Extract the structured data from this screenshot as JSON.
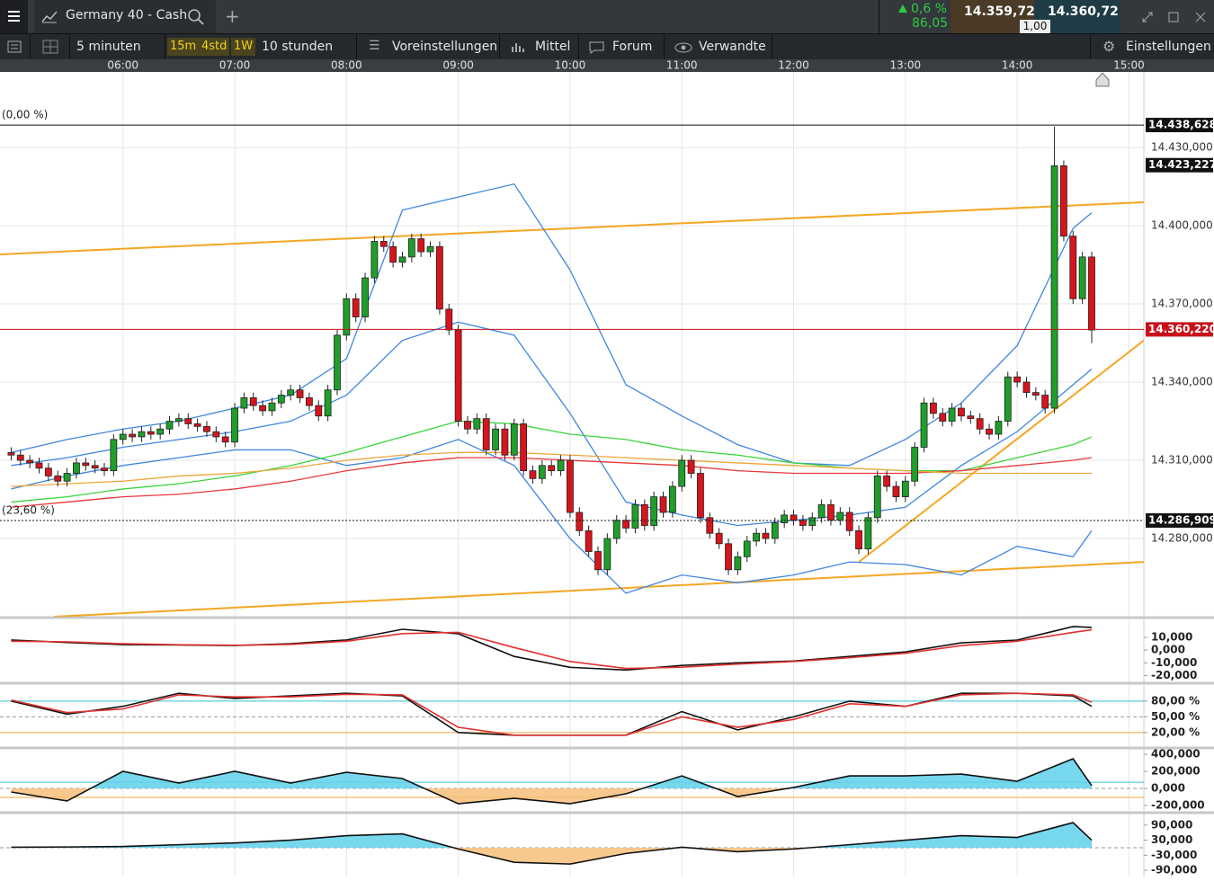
{
  "header": {
    "instrument": "Germany 40 - Cash",
    "change": "0,6 %",
    "change_points": "86,05",
    "bid": "14.359,72",
    "ask": "14.360,72",
    "spread": "1,00"
  },
  "toolbar": {
    "interval": "5 minuten",
    "quick": [
      "15m",
      "4std",
      "1W"
    ],
    "range": "10 stunden",
    "items": [
      "Voreinstellungen",
      "Mittel",
      "Forum",
      "Verwandte"
    ],
    "settings": "Einstellungen"
  },
  "chart_data": {
    "type": "candlestick",
    "up_color": "#1f9e2a",
    "down_color": "#d8141c",
    "grid": true,
    "xlim": [
      294,
      908
    ],
    "xticks": [
      {
        "value": 360,
        "label": "06:00"
      },
      {
        "value": 420,
        "label": "07:00"
      },
      {
        "value": 480,
        "label": "08:00"
      },
      {
        "value": 540,
        "label": "09:00"
      },
      {
        "value": 600,
        "label": "10:00"
      },
      {
        "value": 660,
        "label": "11:00"
      },
      {
        "value": 720,
        "label": "12:00"
      },
      {
        "value": 780,
        "label": "13:00"
      },
      {
        "value": 840,
        "label": "14:00"
      },
      {
        "value": 900,
        "label": "15:00"
      }
    ],
    "ylim": [
      14250,
      14459
    ],
    "yticks": [
      {
        "value": 14430,
        "label": "14.430,000"
      },
      {
        "value": 14400,
        "label": "14.400,000"
      },
      {
        "value": 14370,
        "label": "14.370,000"
      },
      {
        "value": 14340,
        "label": "14.340,000"
      },
      {
        "value": 14310,
        "label": "14.310,000"
      },
      {
        "value": 14280,
        "label": "14.280,000"
      }
    ],
    "x": [
      300,
      305,
      310,
      315,
      320,
      325,
      330,
      335,
      340,
      345,
      350,
      355,
      360,
      365,
      370,
      375,
      380,
      385,
      390,
      395,
      400,
      405,
      410,
      415,
      420,
      425,
      430,
      435,
      440,
      445,
      450,
      455,
      460,
      465,
      470,
      475,
      480,
      485,
      490,
      495,
      500,
      505,
      510,
      515,
      520,
      525,
      530,
      535,
      540,
      545,
      550,
      555,
      560,
      565,
      570,
      575,
      580,
      585,
      590,
      595,
      600,
      605,
      610,
      615,
      620,
      625,
      630,
      635,
      640,
      645,
      650,
      655,
      660,
      665,
      670,
      675,
      680,
      685,
      690,
      695,
      700,
      705,
      710,
      715,
      720,
      725,
      730,
      735,
      740,
      745,
      750,
      755,
      760,
      765,
      770,
      775,
      780,
      785,
      790,
      795,
      800,
      805,
      810,
      815,
      820,
      825,
      830,
      835,
      840,
      845,
      850,
      855,
      860,
      865,
      870,
      875,
      880
    ],
    "open": [
      14313,
      14312,
      14310,
      14309,
      14307,
      14304,
      14302,
      14305,
      14309,
      14308,
      14307,
      14306,
      14318,
      14320,
      14319,
      14321,
      14320,
      14322,
      14325,
      14326,
      14324,
      14323,
      14321,
      14319,
      14317,
      14330,
      14334,
      14331,
      14329,
      14332,
      14335,
      14337,
      14334,
      14331,
      14327,
      14337,
      14358,
      14372,
      14365,
      14380,
      14394,
      14392,
      14386,
      14388,
      14395,
      14390,
      14392,
      14368,
      14360,
      14325,
      14322,
      14326,
      14314,
      14322,
      14312,
      14324,
      14306,
      14303,
      14308,
      14306,
      14310,
      14290,
      14283,
      14275,
      14268,
      14280,
      14287,
      14284,
      14293,
      14285,
      14296,
      14290,
      14300,
      14310,
      14305,
      14288,
      14282,
      14278,
      14268,
      14273,
      14279,
      14282,
      14280,
      14286,
      14289,
      14287,
      14285,
      14288,
      14293,
      14287,
      14290,
      14283,
      14276,
      14288,
      14304,
      14300,
      14296,
      14302,
      14315,
      14332,
      14328,
      14325,
      14330,
      14327,
      14326,
      14322,
      14320,
      14325,
      14342,
      14340,
      14336,
      14335,
      14330,
      14423,
      14396,
      14372,
      14388
    ],
    "high": [
      14315,
      14314,
      14312,
      14311,
      14309,
      14306,
      14307,
      14311,
      14311,
      14310,
      14309,
      14320,
      14322,
      14322,
      14323,
      14323,
      14324,
      14327,
      14328,
      14328,
      14326,
      14325,
      14323,
      14321,
      14332,
      14336,
      14336,
      14333,
      14334,
      14337,
      14339,
      14339,
      14336,
      14333,
      14339,
      14360,
      14374,
      14374,
      14382,
      14396,
      14396,
      14394,
      14390,
      14397,
      14397,
      14394,
      14394,
      14370,
      14362,
      14327,
      14328,
      14328,
      14324,
      14324,
      14326,
      14326,
      14308,
      14310,
      14310,
      14312,
      14312,
      14292,
      14285,
      14277,
      14282,
      14289,
      14289,
      14295,
      14295,
      14298,
      14298,
      14302,
      14312,
      14312,
      14307,
      14290,
      14284,
      14280,
      14275,
      14281,
      14284,
      14284,
      14288,
      14291,
      14291,
      14289,
      14290,
      14295,
      14295,
      14292,
      14292,
      14285,
      14290,
      14306,
      14306,
      14302,
      14304,
      14317,
      14334,
      14334,
      14330,
      14332,
      14332,
      14329,
      14328,
      14324,
      14327,
      14344,
      14344,
      14342,
      14338,
      14337,
      14438,
      14425,
      14398,
      14390,
      14390
    ],
    "low": [
      14310,
      14308,
      14307,
      14305,
      14302,
      14300,
      14300,
      14303,
      14306,
      14305,
      14304,
      14304,
      14316,
      14317,
      14317,
      14318,
      14318,
      14320,
      14323,
      14322,
      14321,
      14319,
      14317,
      14315,
      14315,
      14328,
      14329,
      14327,
      14327,
      14330,
      14333,
      14332,
      14329,
      14325,
      14325,
      14335,
      14356,
      14363,
      14363,
      14378,
      14390,
      14384,
      14384,
      14386,
      14388,
      14388,
      14366,
      14358,
      14323,
      14320,
      14320,
      14312,
      14312,
      14310,
      14310,
      14304,
      14301,
      14301,
      14304,
      14304,
      14288,
      14281,
      14273,
      14266,
      14266,
      14278,
      14282,
      14282,
      14283,
      14283,
      14288,
      14288,
      14298,
      14303,
      14286,
      14280,
      14276,
      14266,
      14266,
      14271,
      14277,
      14278,
      14278,
      14284,
      14285,
      14283,
      14283,
      14286,
      14285,
      14285,
      14281,
      14274,
      14274,
      14286,
      14298,
      14294,
      14294,
      14300,
      14313,
      14326,
      14323,
      14323,
      14325,
      14324,
      14320,
      14318,
      14318,
      14323,
      14338,
      14334,
      14333,
      14328,
      14328,
      14394,
      14370,
      14370,
      14355
    ],
    "close": [
      14312,
      14310,
      14309,
      14307,
      14304,
      14302,
      14305,
      14309,
      14308,
      14307,
      14306,
      14318,
      14320,
      14319,
      14321,
      14320,
      14322,
      14325,
      14326,
      14324,
      14323,
      14321,
      14319,
      14317,
      14330,
      14334,
      14331,
      14329,
      14332,
      14335,
      14337,
      14334,
      14331,
      14327,
      14337,
      14358,
      14372,
      14365,
      14380,
      14394,
      14392,
      14386,
      14388,
      14395,
      14390,
      14392,
      14368,
      14360,
      14325,
      14322,
      14326,
      14314,
      14322,
      14312,
      14324,
      14306,
      14303,
      14308,
      14306,
      14310,
      14290,
      14283,
      14275,
      14268,
      14280,
      14287,
      14284,
      14293,
      14285,
      14296,
      14290,
      14300,
      14310,
      14305,
      14288,
      14282,
      14278,
      14268,
      14273,
      14279,
      14282,
      14280,
      14286,
      14289,
      14287,
      14285,
      14288,
      14293,
      14287,
      14290,
      14283,
      14276,
      14288,
      14304,
      14300,
      14296,
      14302,
      14315,
      14332,
      14328,
      14325,
      14330,
      14327,
      14326,
      14322,
      14320,
      14325,
      14342,
      14340,
      14336,
      14335,
      14330,
      14423,
      14396,
      14372,
      14388,
      14360
    ],
    "lines": {
      "x": [
        300,
        330,
        360,
        390,
        420,
        450,
        480,
        510,
        540,
        570,
        600,
        630,
        660,
        690,
        720,
        750,
        780,
        810,
        840,
        870,
        880
      ],
      "series": [
        {
          "color": "#3f86e0",
          "values": [
            14313,
            14318,
            14322,
            14325,
            14330,
            14335,
            14349,
            14406,
            14411,
            14416,
            14383,
            14339,
            14327,
            14316,
            14309,
            14308,
            14318,
            14332,
            14354,
            14399,
            14405
          ]
        },
        {
          "color": "#3f86e0",
          "values": [
            14299,
            14304,
            14308,
            14311,
            14314,
            14314,
            14308,
            14311,
            14318,
            14308,
            14280,
            14259,
            14266,
            14263,
            14266,
            14271,
            14270,
            14266,
            14277,
            14273,
            14283
          ]
        },
        {
          "color": "#3f86e0",
          "values": [
            14308,
            14311,
            14315,
            14318,
            14321,
            14325,
            14335,
            14356,
            14363,
            14358,
            14328,
            14294,
            14289,
            14285,
            14287,
            14289,
            14292,
            14308,
            14321,
            14339,
            14345
          ]
        },
        {
          "color": "#3ad43a",
          "values": [
            14294,
            14296,
            14299,
            14301,
            14304,
            14308,
            14313,
            14319,
            14325,
            14324,
            14320,
            14318,
            14314,
            14312,
            14309,
            14307,
            14306,
            14306,
            14311,
            14316,
            14319
          ]
        },
        {
          "color": "#e8383a",
          "values": [
            14292,
            14294,
            14296,
            14297,
            14299,
            14302,
            14306,
            14309,
            14311,
            14311,
            14310,
            14309,
            14308,
            14306,
            14305,
            14305,
            14305,
            14306,
            14308,
            14310,
            14311
          ]
        },
        {
          "color": "#f0a53a",
          "values": [
            14300,
            14301,
            14302,
            14304,
            14305,
            14307,
            14310,
            14312,
            14313,
            14313,
            14312,
            14311,
            14310,
            14309,
            14308,
            14307,
            14306,
            14305,
            14305,
            14305,
            14305
          ]
        }
      ]
    },
    "trendlines": [
      {
        "color": "#f5a623",
        "points": [
          [
            294,
            14389
          ],
          [
            908,
            14409
          ]
        ]
      },
      {
        "color": "#f5a623",
        "points": [
          [
            323,
            14250
          ],
          [
            908,
            14271
          ]
        ]
      },
      {
        "color": "#f5a623",
        "points": [
          [
            755,
            14271
          ],
          [
            908,
            14356
          ]
        ]
      }
    ],
    "levels": [
      {
        "value": 14438.628,
        "label": "14.438,628",
        "fib": "(0,00 %)",
        "line": "solid",
        "color": "#111111"
      },
      {
        "value": 14423.227,
        "label": "14.423,227",
        "line": "none",
        "color": "#111111"
      },
      {
        "value": 14360.22,
        "label": "14.360,220",
        "line": "solid",
        "color": "#c8101a"
      },
      {
        "value": 14286.909,
        "label": "14.286,909",
        "fib": "(23,60 %)",
        "line": "dotted",
        "color": "#111111"
      }
    ],
    "panels": [
      {
        "ylim": [
          -24000,
          23500
        ],
        "yticks": [
          {
            "value": 10000,
            "label": "10,000"
          },
          {
            "value": 0,
            "label": "0,000"
          },
          {
            "value": -10000,
            "label": "-10,000"
          },
          {
            "value": -20000,
            "label": "-20,000"
          }
        ],
        "refs": [],
        "fill": false,
        "series": [
          {
            "color": "#111111",
            "values": [
              8000,
              6000,
              4300,
              4000,
              3600,
              5000,
              8000,
              16400,
              12900,
              -5000,
              -13600,
              -15700,
              -12100,
              -10000,
              -8600,
              -5000,
              -1400,
              5700,
              7900,
              18600,
              17900
            ]
          },
          {
            "color": "#e03030",
            "values": [
              7000,
              6500,
              5000,
              4200,
              3800,
              4500,
              7000,
              13000,
              14000,
              2000,
              -9000,
              -14500,
              -13500,
              -11000,
              -9000,
              -6000,
              -2500,
              3500,
              7000,
              14000,
              16000
            ]
          }
        ]
      },
      {
        "ylim": [
          -6,
          109
        ],
        "yticks": [
          {
            "value": 80,
            "label": "80,00 %"
          },
          {
            "value": 50,
            "label": "50,00 %"
          },
          {
            "value": 20,
            "label": "20,00 %"
          }
        ],
        "refs": [
          {
            "value": 80,
            "color": "#35c0d0"
          },
          {
            "value": 50,
            "color": "#999999",
            "dash": true
          },
          {
            "value": 20,
            "color": "#f0a53a"
          }
        ],
        "fill": false,
        "series": [
          {
            "color": "#111111",
            "values": [
              80,
              55,
              70,
              95,
              85,
              90,
              95,
              90,
              20,
              15,
              15,
              15,
              60,
              25,
              50,
              80,
              70,
              95,
              95,
              90,
              70
            ]
          },
          {
            "color": "#e03030",
            "values": [
              82,
              58,
              65,
              92,
              88,
              88,
              93,
              92,
              30,
              15,
              15,
              15,
              50,
              30,
              45,
              75,
              70,
              92,
              95,
              92,
              78
            ]
          }
        ]
      },
      {
        "ylim": [
          -263000,
          442000
        ],
        "yticks": [
          {
            "value": 400000,
            "label": "400,000"
          },
          {
            "value": 200000,
            "label": "200,000"
          },
          {
            "value": 0,
            "label": "0,000"
          },
          {
            "value": -200000,
            "label": "-200,000"
          }
        ],
        "refs": [
          {
            "value": 73000,
            "color": "#35c0d0"
          },
          {
            "value": 0,
            "color": "#999999",
            "dash": true
          },
          {
            "value": -105000,
            "color": "#f0a53a"
          }
        ],
        "fill": true,
        "series": [
          {
            "color": "#111111",
            "values": [
              -42000,
              -147000,
              200000,
              63000,
              200000,
              63000,
              189000,
              116000,
              -179000,
              -116000,
              -179000,
              -63000,
              147000,
              -95000,
              11000,
              147000,
              147000,
              168000,
              84000,
              347000,
              32000
            ]
          }
        ]
      },
      {
        "ylim": [
          -114700,
          128800
        ],
        "yticks": [
          {
            "value": 90000,
            "label": "90,000"
          },
          {
            "value": 30000,
            "label": "30,000"
          },
          {
            "value": -30000,
            "label": "-30,000"
          },
          {
            "value": -90000,
            "label": "-90,000"
          }
        ],
        "refs": [
          {
            "value": 0,
            "color": "#999999",
            "dash": true
          }
        ],
        "fill": true,
        "series": [
          {
            "color": "#111111",
            "values": [
              2000,
              3000,
              5000,
              12000,
              19000,
              30000,
              48000,
              55000,
              -5000,
              -58000,
              -65000,
              -23000,
              2000,
              -16000,
              -5000,
              12000,
              30000,
              48000,
              41000,
              100000,
              30000
            ]
          }
        ]
      }
    ]
  }
}
